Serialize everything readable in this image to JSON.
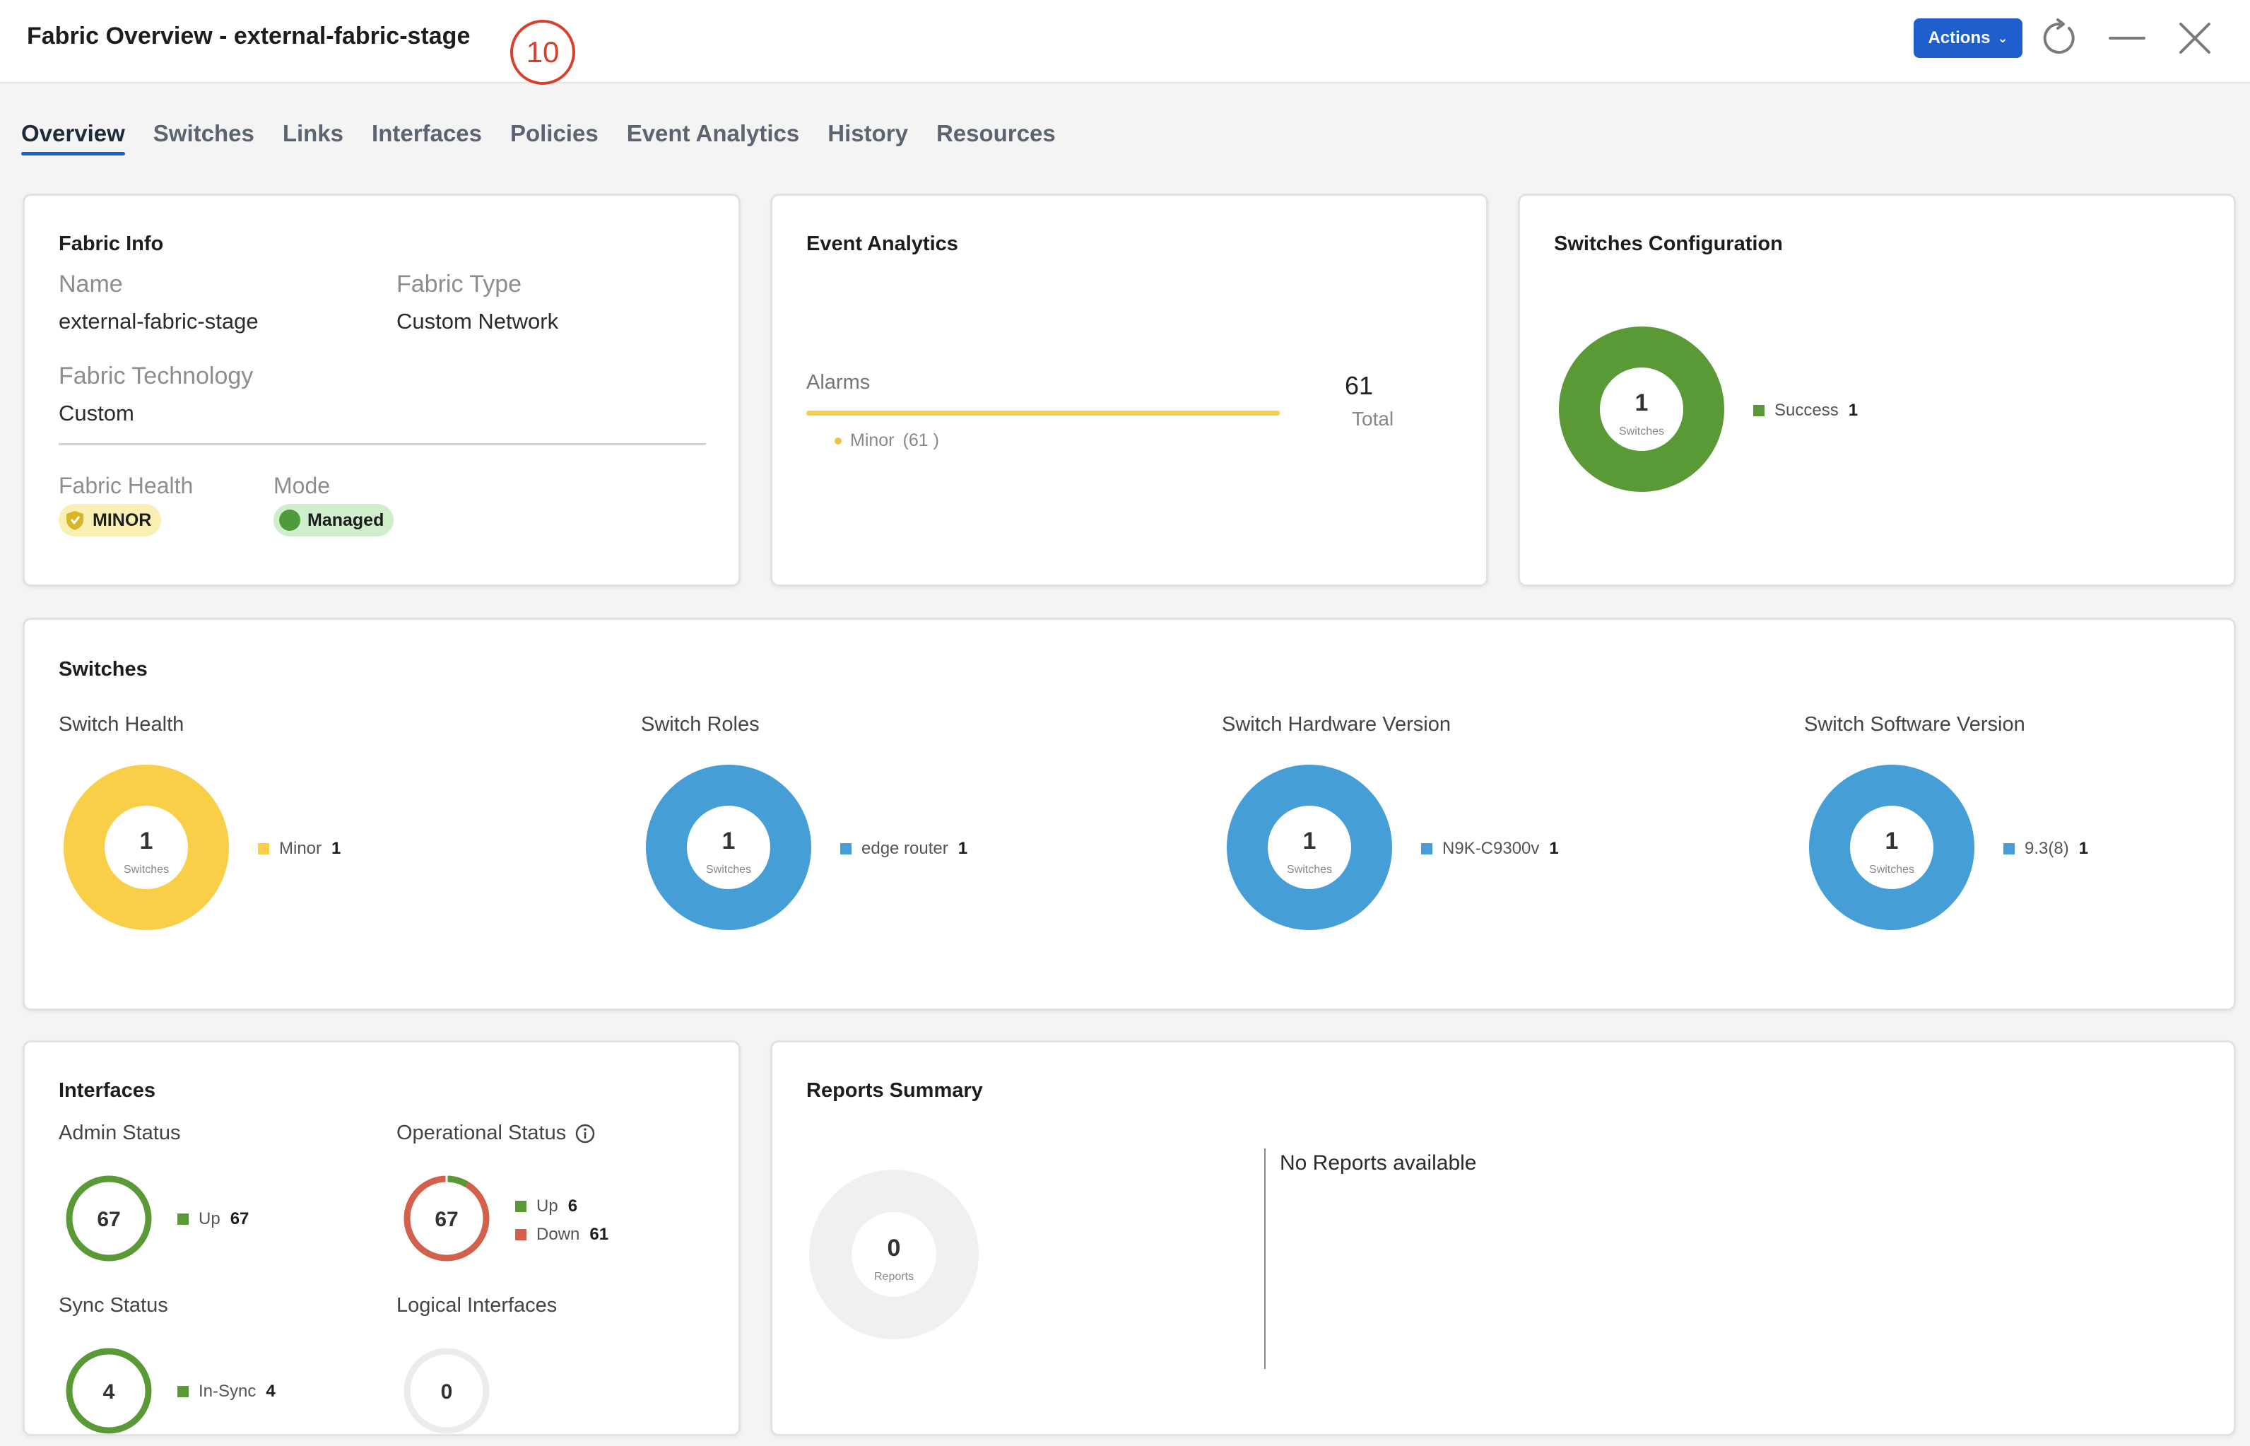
{
  "header": {
    "title": "Fabric Overview - external-fabric-stage",
    "step_badge": "10",
    "actions_label": "Actions"
  },
  "tabs": [
    {
      "label": "Overview",
      "active": true
    },
    {
      "label": "Switches"
    },
    {
      "label": "Links"
    },
    {
      "label": "Interfaces"
    },
    {
      "label": "Policies"
    },
    {
      "label": "Event Analytics"
    },
    {
      "label": "History"
    },
    {
      "label": "Resources"
    }
  ],
  "fabric_info": {
    "title": "Fabric Info",
    "name_label": "Name",
    "name_value": "external-fabric-stage",
    "type_label": "Fabric Type",
    "type_value": "Custom Network",
    "tech_label": "Fabric Technology",
    "tech_value": "Custom",
    "health_label": "Fabric Health",
    "health_value": "MINOR",
    "mode_label": "Mode",
    "mode_value": "Managed"
  },
  "event_analytics": {
    "title": "Event Analytics",
    "alarms_label": "Alarms",
    "minor_label": "Minor",
    "minor_count": "(61 )",
    "total_value": "61",
    "total_label": "Total"
  },
  "switches_config": {
    "title": "Switches Configuration",
    "count": "1",
    "unit": "Switches",
    "legend_label": "Success",
    "legend_value": "1"
  },
  "switches": {
    "title": "Switches",
    "health": {
      "label": "Switch Health",
      "count": "1",
      "unit": "Switches",
      "legend_label": "Minor",
      "legend_value": "1"
    },
    "roles": {
      "label": "Switch Roles",
      "count": "1",
      "unit": "Switches",
      "legend_label": "edge router",
      "legend_value": "1"
    },
    "hardware": {
      "label": "Switch Hardware Version",
      "count": "1",
      "unit": "Switches",
      "legend_label": "N9K-C9300v",
      "legend_value": "1"
    },
    "software": {
      "label": "Switch Software Version",
      "count": "1",
      "unit": "Switches",
      "legend_label": "9.3(8)",
      "legend_value": "1"
    }
  },
  "interfaces": {
    "title": "Interfaces",
    "admin": {
      "label": "Admin Status",
      "count": "67",
      "up_label": "Up",
      "up_value": "67"
    },
    "oper": {
      "label": "Operational Status",
      "count": "67",
      "up_label": "Up",
      "up_value": "6",
      "down_label": "Down",
      "down_value": "61"
    },
    "sync": {
      "label": "Sync Status",
      "count": "4",
      "insync_label": "In-Sync",
      "insync_value": "4"
    },
    "logical": {
      "label": "Logical Interfaces",
      "count": "0"
    }
  },
  "reports": {
    "title": "Reports Summary",
    "count": "0",
    "unit": "Reports",
    "empty_text": "No Reports available"
  },
  "colors": {
    "accent_blue": "#1f5fcd",
    "green": "#5a9a36",
    "yellow": "#f8cf47",
    "blue": "#459ed6",
    "red": "#d2604a",
    "badge_red": "#d9402c"
  }
}
